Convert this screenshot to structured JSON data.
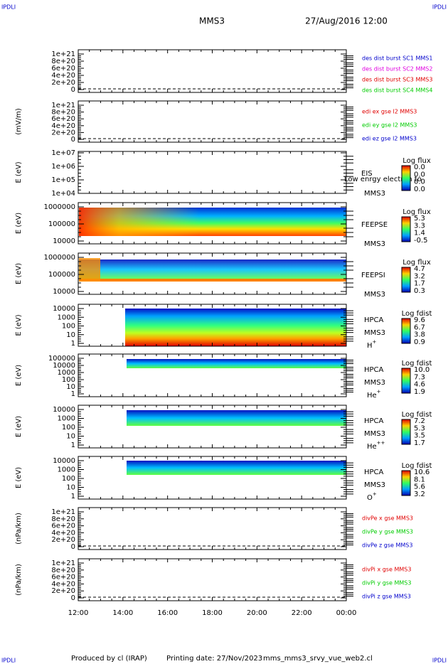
{
  "header": {
    "corner_left": "IPDLI",
    "corner_right": "IPDLI",
    "title": "MMS3",
    "date": "27/Aug/2016 12:00"
  },
  "panels": [
    {
      "yticks": [
        "1e+21",
        "8e+20",
        "6e+20",
        "4e+20",
        "2e+20",
        "0"
      ],
      "legend": [
        {
          "text": "des dist burst SC1 MMS1",
          "color": "#0000cc"
        },
        {
          "text": "des dist burst SC2 MMS2",
          "color": "#e000e0"
        },
        {
          "text": "des dist burst SC3 MMS3",
          "color": "#e00000"
        },
        {
          "text": "des dist burst SC4 MMS4",
          "color": "#00cc00"
        }
      ]
    },
    {
      "ylabel": "(mV/m)",
      "yticks": [
        "1e+21",
        "8e+20",
        "6e+20",
        "4e+20",
        "2e+20",
        "0"
      ],
      "legend": [
        {
          "text": "edi ex gse l2 MMS3",
          "color": "#e00000"
        },
        {
          "text": "edi ey gse l2 MMS3",
          "color": "#00cc00"
        },
        {
          "text": "edi ez gse l2 MMS3",
          "color": "#0000cc"
        }
      ]
    },
    {
      "ylabel": "E (eV)",
      "yticks": [
        "1e+07",
        "1e+06",
        "1e+05",
        "1e+04"
      ],
      "instrument": "EIS",
      "sc": "MMS3",
      "note": "Low enrgy electron to",
      "colorbar": {
        "title": "Log flux",
        "ticks": [
          "0.0",
          "0.0",
          "0.0",
          "0.0"
        ]
      }
    },
    {
      "ylabel": "E (eV)",
      "yticks": [
        "1000000",
        "100000",
        "10000"
      ],
      "instrument": "FEEPSE",
      "sc": "MMS3",
      "colorbar": {
        "title": "Log flux",
        "ticks": [
          "5.3",
          "3.3",
          "1.4",
          "-0.5"
        ]
      }
    },
    {
      "ylabel": "E (eV)",
      "yticks": [
        "1000000",
        "100000",
        "10000"
      ],
      "instrument": "FEEPSI",
      "sc": "MMS3",
      "colorbar": {
        "title": "Log flux",
        "ticks": [
          "4.7",
          "3.2",
          "1.7",
          "0.3"
        ]
      }
    },
    {
      "ylabel": "E (eV)",
      "yticks": [
        "10000",
        "1000",
        "100",
        "10",
        "1"
      ],
      "instrument": "HPCA",
      "sc": "MMS3",
      "species": {
        "base": "H",
        "charge": "+"
      },
      "colorbar": {
        "title": "Log fdist",
        "ticks": [
          "9.6",
          "6.7",
          "3.8",
          "0.9"
        ]
      }
    },
    {
      "ylabel": "E (eV)",
      "yticks": [
        "100000",
        "10000",
        "1000",
        "100",
        "10",
        "1"
      ],
      "instrument": "HPCA",
      "sc": "MMS3",
      "species": {
        "base": "He",
        "charge": "+"
      },
      "colorbar": {
        "title": "Log fdist",
        "ticks": [
          "10.0",
          "7.3",
          "4.6",
          "1.9"
        ]
      }
    },
    {
      "ylabel": "E (eV)",
      "yticks": [
        "10000",
        "1000",
        "100",
        "10",
        "1"
      ],
      "instrument": "HPCA",
      "sc": "MMS3",
      "species": {
        "base": "He",
        "charge": "++"
      },
      "colorbar": {
        "title": "Log fdist",
        "ticks": [
          "7.2",
          "5.3",
          "3.5",
          "1.7"
        ]
      }
    },
    {
      "ylabel": "E (eV)",
      "yticks": [
        "10000",
        "1000",
        "100",
        "10",
        "1"
      ],
      "instrument": "HPCA",
      "sc": "MMS3",
      "species": {
        "base": "O",
        "charge": "+"
      },
      "colorbar": {
        "title": "Log fdist",
        "ticks": [
          "10.6",
          "8.1",
          "5.6",
          "3.2"
        ]
      }
    },
    {
      "ylabel": "(nPa/km)",
      "yticks": [
        "1e+21",
        "8e+20",
        "6e+20",
        "4e+20",
        "2e+20",
        "0"
      ],
      "legend": [
        {
          "text": "divPe x gse MMS3",
          "color": "#e00000"
        },
        {
          "text": "divPe y gse MMS3",
          "color": "#00cc00"
        },
        {
          "text": "divPe z gse MMS3",
          "color": "#0000cc"
        }
      ]
    },
    {
      "ylabel": "(nPa/km)",
      "yticks": [
        "1e+21",
        "8e+20",
        "6e+20",
        "4e+20",
        "2e+20",
        "0"
      ],
      "legend": [
        {
          "text": "divPi x gse MMS3",
          "color": "#e00000"
        },
        {
          "text": "divPi y gse MMS3",
          "color": "#00cc00"
        },
        {
          "text": "divPi z gse MMS3",
          "color": "#0000cc"
        }
      ]
    }
  ],
  "xticks": [
    "12:00",
    "14:00",
    "16:00",
    "18:00",
    "20:00",
    "22:00",
    "00:00"
  ],
  "footer": {
    "corner_left": "IPDLI",
    "corner_right": "IPDLI",
    "credit": "Produced by cl (IRAP)",
    "printing": "Printing date: 27/Nov/2023",
    "file": "mms_mms3_srvy_vue_web2.cl"
  }
}
